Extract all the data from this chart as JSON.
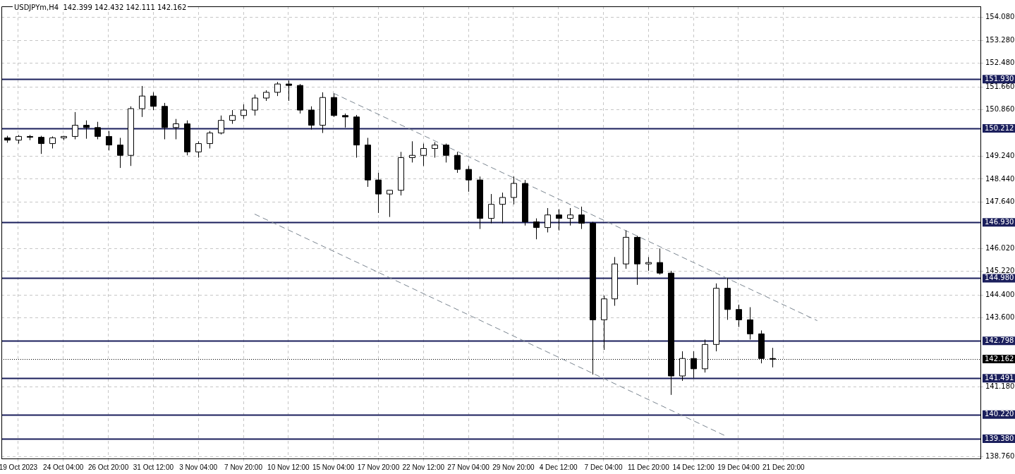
{
  "chart_data": {
    "type": "candlestick",
    "title": "USDJPYm,H4  142.399 142.432 142.111 142.162",
    "colors": [
      "#000000",
      "#ffffff",
      "#000000",
      "#000000",
      "#ffffff",
      "#ffffff",
      "#ffffff",
      "#000000",
      "#000000",
      "#000000",
      "#000000",
      "#ffffff",
      "#ffffff",
      "#000000",
      "#000000",
      "#ffffff",
      "#000000",
      "#ffffff",
      "#ffffff",
      "#ffffff",
      "#ffffff",
      "#ffffff",
      "#ffffff",
      "#ffffff",
      "#ffffff",
      "#000000",
      "#000000",
      "#000000",
      "#ffffff",
      "#000000",
      "#000000",
      "#000000",
      "#000000",
      "#000000",
      "#ffffff",
      "#ffffff",
      "#ffffff",
      "#ffffff",
      "#ffffff",
      "#000000",
      "#000000",
      "#000000",
      "#000000",
      "#ffffff",
      "#ffffff",
      "#ffffff",
      "#000000",
      "#000000",
      "#ffffff",
      "#000000",
      "#ffffff",
      "#000000",
      "#000000",
      "#ffffff",
      "#ffffff",
      "#ffffff",
      "#000000",
      "#ffffff",
      "#000000",
      "#000000",
      "#ffffff",
      "#000000",
      "#ffffff",
      "#ffffff",
      "#000000",
      "#000000",
      "#000000",
      "#000000",
      "#000000",
      null,
      null,
      null,
      null,
      null,
      null,
      null,
      null,
      null,
      null,
      null,
      null,
      null,
      null,
      null,
      null,
      null,
      null
    ],
    "grid": true,
    "legend": false,
    "categories": [
      null,
      "19 Oct 2023",
      null,
      null,
      null,
      "24 Oct 04:00",
      null,
      null,
      null,
      "26 Oct 20:00",
      null,
      null,
      null,
      "31 Oct 12:00",
      null,
      null,
      null,
      "3 Nov 04:00",
      null,
      null,
      null,
      "7 Nov 20:00",
      null,
      null,
      null,
      "10 Nov 12:00",
      null,
      null,
      null,
      "15 Nov 04:00",
      null,
      null,
      null,
      "17 Nov 20:00",
      null,
      null,
      null,
      "22 Nov 12:00",
      null,
      null,
      null,
      "27 Nov 04:00",
      null,
      null,
      null,
      "29 Nov 20:00",
      null,
      null,
      null,
      "4 Dec 12:00",
      null,
      null,
      null,
      "7 Dec 04:00",
      null,
      null,
      null,
      "11 Dec 20:00",
      null,
      null,
      null,
      "14 Dec 12:00",
      null,
      null,
      null,
      "19 Dec 04:00",
      null,
      null,
      null,
      "21 Dec 20:00",
      null,
      null,
      null,
      null,
      null,
      null,
      null,
      null,
      null,
      null,
      null,
      null,
      null,
      null,
      null,
      null,
      null
    ],
    "ohlc": [
      [
        149.88,
        149.95,
        149.71,
        149.8
      ],
      [
        149.8,
        149.98,
        149.68,
        149.93
      ],
      [
        149.93,
        149.98,
        149.8,
        149.9
      ],
      [
        149.9,
        149.95,
        149.32,
        149.68
      ],
      [
        149.68,
        149.93,
        149.51,
        149.88
      ],
      [
        149.88,
        149.95,
        149.8,
        149.93
      ],
      [
        149.93,
        150.78,
        149.83,
        150.32
      ],
      [
        150.32,
        150.49,
        149.85,
        150.24
      ],
      [
        150.24,
        150.44,
        149.83,
        149.93
      ],
      [
        149.93,
        150.12,
        149.44,
        149.63
      ],
      [
        149.63,
        149.88,
        148.83,
        149.27
      ],
      [
        149.27,
        150.98,
        148.9,
        150.9
      ],
      [
        150.9,
        151.69,
        150.61,
        151.34
      ],
      [
        151.34,
        151.47,
        150.85,
        150.98
      ],
      [
        150.98,
        151.1,
        149.83,
        150.24
      ],
      [
        150.24,
        150.54,
        149.83,
        150.37
      ],
      [
        150.37,
        150.49,
        149.27,
        149.39
      ],
      [
        149.39,
        149.76,
        149.19,
        149.68
      ],
      [
        149.68,
        150.12,
        149.51,
        150.05
      ],
      [
        150.05,
        150.66,
        150.0,
        150.49
      ],
      [
        150.49,
        150.85,
        150.37,
        150.66
      ],
      [
        150.66,
        151.05,
        150.54,
        150.85
      ],
      [
        150.85,
        151.39,
        150.66,
        151.27
      ],
      [
        151.27,
        151.54,
        151.17,
        151.47
      ],
      [
        151.47,
        151.83,
        151.34,
        151.76
      ],
      [
        151.76,
        151.88,
        151.17,
        151.71
      ],
      [
        151.71,
        151.76,
        150.73,
        150.85
      ],
      [
        150.85,
        150.98,
        150.17,
        150.32
      ],
      [
        150.32,
        151.47,
        150.05,
        151.29
      ],
      [
        151.29,
        151.42,
        150.61,
        150.66
      ],
      [
        150.66,
        150.73,
        150.24,
        150.61
      ],
      [
        150.61,
        150.68,
        149.19,
        149.63
      ],
      [
        149.63,
        149.88,
        148.17,
        148.41
      ],
      [
        148.41,
        148.66,
        147.26,
        147.92
      ],
      [
        147.92,
        148.05,
        147.12,
        148.05
      ],
      [
        148.05,
        149.39,
        147.87,
        149.19
      ],
      [
        149.19,
        149.76,
        149.02,
        149.27
      ],
      [
        149.27,
        149.68,
        148.9,
        149.51
      ],
      [
        149.51,
        149.73,
        149.19,
        149.63
      ],
      [
        149.63,
        149.68,
        149.02,
        149.27
      ],
      [
        149.27,
        149.39,
        148.66,
        148.78
      ],
      [
        148.78,
        148.9,
        148.0,
        148.41
      ],
      [
        148.41,
        148.53,
        146.7,
        147.07
      ],
      [
        147.07,
        147.92,
        146.9,
        147.56
      ],
      [
        147.56,
        147.97,
        146.9,
        147.8
      ],
      [
        147.8,
        148.53,
        147.56,
        148.29
      ],
      [
        148.29,
        148.41,
        146.82,
        146.95
      ],
      [
        146.95,
        147.07,
        146.34,
        146.75
      ],
      [
        146.75,
        147.43,
        146.58,
        147.19
      ],
      [
        147.19,
        147.39,
        146.65,
        147.07
      ],
      [
        147.07,
        147.43,
        146.82,
        147.19
      ],
      [
        147.19,
        147.48,
        146.7,
        146.9
      ],
      [
        146.9,
        146.95,
        141.62,
        143.53
      ],
      [
        143.53,
        144.38,
        142.48,
        144.26
      ],
      [
        144.26,
        145.72,
        144.02,
        145.48
      ],
      [
        145.48,
        146.65,
        145.31,
        146.41
      ],
      [
        146.41,
        146.46,
        144.75,
        145.48
      ],
      [
        145.48,
        145.72,
        145.24,
        145.53
      ],
      [
        145.53,
        146.02,
        145.11,
        145.16
      ],
      [
        145.16,
        145.24,
        140.91,
        141.57
      ],
      [
        141.57,
        142.43,
        141.4,
        142.18
      ],
      [
        142.18,
        142.43,
        141.5,
        141.82
      ],
      [
        141.82,
        142.84,
        141.69,
        142.67
      ],
      [
        142.67,
        144.8,
        142.43,
        144.63
      ],
      [
        144.63,
        144.99,
        143.53,
        143.89
      ],
      [
        143.89,
        144.06,
        143.28,
        143.53
      ],
      [
        143.53,
        143.97,
        142.84,
        143.04
      ],
      [
        143.04,
        143.16,
        142.01,
        142.18
      ],
      [
        142.18,
        142.55,
        141.87,
        142.16
      ],
      null,
      null,
      null,
      null,
      null,
      null,
      null,
      null,
      null,
      null,
      null,
      null,
      null,
      null,
      null,
      null,
      null,
      null
    ],
    "series": [
      {
        "type": "line",
        "values": [
          null,
          null,
          null,
          null,
          null,
          null,
          null,
          null,
          null,
          null,
          null,
          null,
          null,
          null,
          null,
          null,
          null,
          null,
          null,
          null,
          null,
          null,
          null,
          null,
          null,
          null,
          null,
          null,
          null,
          151.44,
          null,
          null,
          null,
          null,
          null,
          null,
          null,
          null,
          null,
          null,
          null,
          null,
          null,
          null,
          null,
          null,
          null,
          null,
          null,
          null,
          null,
          null,
          null,
          null,
          null,
          null,
          null,
          null,
          null,
          null,
          null,
          null,
          null,
          null,
          null,
          null,
          null,
          null,
          null,
          null,
          null,
          null,
          143.5,
          null,
          null,
          null,
          null,
          null,
          null,
          null,
          null,
          null,
          null,
          null,
          null,
          null,
          null
        ],
        "color": "#7a8590",
        "line_style": "dashed"
      },
      {
        "type": "line",
        "values": [
          null,
          null,
          null,
          null,
          null,
          null,
          null,
          null,
          null,
          null,
          null,
          null,
          null,
          null,
          null,
          null,
          null,
          null,
          null,
          null,
          null,
          null,
          147.22,
          null,
          null,
          null,
          null,
          null,
          null,
          null,
          null,
          null,
          null,
          null,
          null,
          null,
          null,
          null,
          null,
          null,
          null,
          null,
          null,
          null,
          null,
          null,
          null,
          null,
          null,
          null,
          null,
          null,
          null,
          null,
          null,
          null,
          null,
          null,
          null,
          null,
          null,
          null,
          null,
          null,
          139.45,
          null,
          null,
          null,
          null,
          null,
          null,
          null,
          null,
          null,
          null,
          null,
          null,
          null,
          null,
          null,
          null,
          null,
          null,
          null,
          null,
          null,
          null
        ],
        "color": "#7a8590",
        "line_style": "dashed"
      }
    ],
    "ylim": [
      138.69,
      154.47
    ],
    "yticks": [
      {
        "value": 154.08,
        "label": "154.080"
      },
      {
        "value": 153.28,
        "label": "153.280"
      },
      {
        "value": 152.48,
        "label": "152.480"
      },
      {
        "value": 151.66,
        "label": "151.660"
      },
      {
        "value": 150.86,
        "label": "150.860"
      },
      {
        "value": 149.24,
        "label": "149.240"
      },
      {
        "value": 148.44,
        "label": "148.440"
      },
      {
        "value": 147.64,
        "label": "147.640"
      },
      {
        "value": 146.02,
        "label": "146.020"
      },
      {
        "value": 145.22,
        "label": "145.220"
      },
      {
        "value": 144.4,
        "label": "144.400"
      },
      {
        "value": 143.6,
        "label": "143.600"
      },
      {
        "value": 141.18,
        "label": "141.180"
      },
      {
        "value": 138.76,
        "label": "138.760"
      }
    ],
    "ref_lines": [
      {
        "axis": "y",
        "value": 151.93,
        "label": "151.930",
        "color": "#1b1f5c"
      },
      {
        "axis": "y",
        "value": 150.212,
        "label": "150.212",
        "color": "#1b1f5c"
      },
      {
        "axis": "y",
        "value": 146.93,
        "label": "146.930",
        "color": "#1b1f5c"
      },
      {
        "axis": "y",
        "value": 144.98,
        "label": "144.980",
        "color": "#1b1f5c"
      },
      {
        "axis": "y",
        "value": 142.798,
        "label": "142.798",
        "color": "#1b1f5c"
      },
      {
        "axis": "y",
        "value": 142.162,
        "label": "142.162",
        "color": "#000000",
        "line_style": "dotted"
      },
      {
        "axis": "y",
        "value": 141.491,
        "label": "141.491",
        "color": "#1b1f5c"
      },
      {
        "axis": "y",
        "value": 140.22,
        "label": "140.220",
        "color": "#1b1f5c"
      },
      {
        "axis": "y",
        "value": 139.38,
        "label": "139.380",
        "color": "#1b1f5c"
      }
    ]
  }
}
